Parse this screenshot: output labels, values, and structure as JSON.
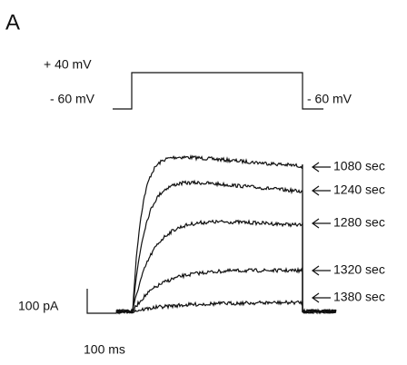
{
  "panel_label": "A",
  "protocol": {
    "high_label": "+ 40 mV",
    "low_label_left": "- 60 mV",
    "low_label_right": "- 60 mV"
  },
  "traces": [
    {
      "label": "1080 sec"
    },
    {
      "label": "1240 sec"
    },
    {
      "label": "1280 sec"
    },
    {
      "label": "1320 sec"
    },
    {
      "label": "1380 sec"
    }
  ],
  "scale_bar": {
    "current": "100 pA",
    "time": "100 ms"
  }
}
